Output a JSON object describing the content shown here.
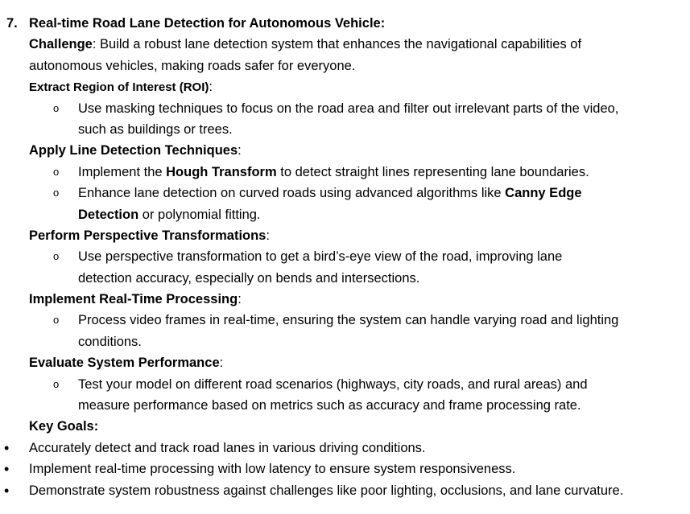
{
  "item_number": "7.",
  "title": "Real-time Road Lane Detection for Autonomous Vehicle:",
  "challenge": {
    "label": "Challenge",
    "text_line1": ": Build a robust lane detection system that enhances the navigational capabilities of",
    "text_line2": "autonomous vehicles, making roads safer for everyone."
  },
  "roi": {
    "heading": "Extract Region of Interest (ROI)",
    "colon": ":",
    "bullet": "o",
    "item_line1": "Use masking techniques to focus on the road area and filter out irrelevant parts of the video,",
    "item_line2": "such as buildings or trees."
  },
  "line_detection": {
    "heading": "Apply Line Detection Techniques",
    "colon": ":",
    "bullet": "o",
    "item1_pre": "Implement the ",
    "item1_bold": "Hough Transform",
    "item1_post": " to detect straight lines representing lane boundaries.",
    "item2_pre": "Enhance lane detection on curved roads using advanced algorithms like ",
    "item2_bold1": "Canny Edge",
    "item2_bold2": "Detection",
    "item2_post": " or polynomial fitting."
  },
  "perspective": {
    "heading": "Perform Perspective Transformations",
    "colon": ":",
    "bullet": "o",
    "item_line1": "Use perspective transformation to get a bird’s-eye view of the road, improving lane",
    "item_line2": "detection accuracy, especially on bends and intersections."
  },
  "realtime": {
    "heading": "Implement Real-Time Processing",
    "colon": ":",
    "bullet": "o",
    "item_line1": "Process video frames in real-time, ensuring the system can handle varying road and lighting",
    "item_line2": "conditions."
  },
  "evaluate": {
    "heading": "Evaluate System Performance",
    "colon": ":",
    "bullet": "o",
    "item_line1": "Test your model on different road scenarios (highways, city roads, and rural areas) and",
    "item_line2": "measure performance based on metrics such as accuracy and frame processing rate."
  },
  "key_goals": {
    "heading": "Key Goals:",
    "bullet": "•",
    "items": [
      "Accurately detect and track road lanes in various driving conditions.",
      "Implement real-time processing with low latency to ensure system responsiveness.",
      "Demonstrate system robustness against challenges like poor lighting, occlusions, and lane curvature."
    ]
  }
}
